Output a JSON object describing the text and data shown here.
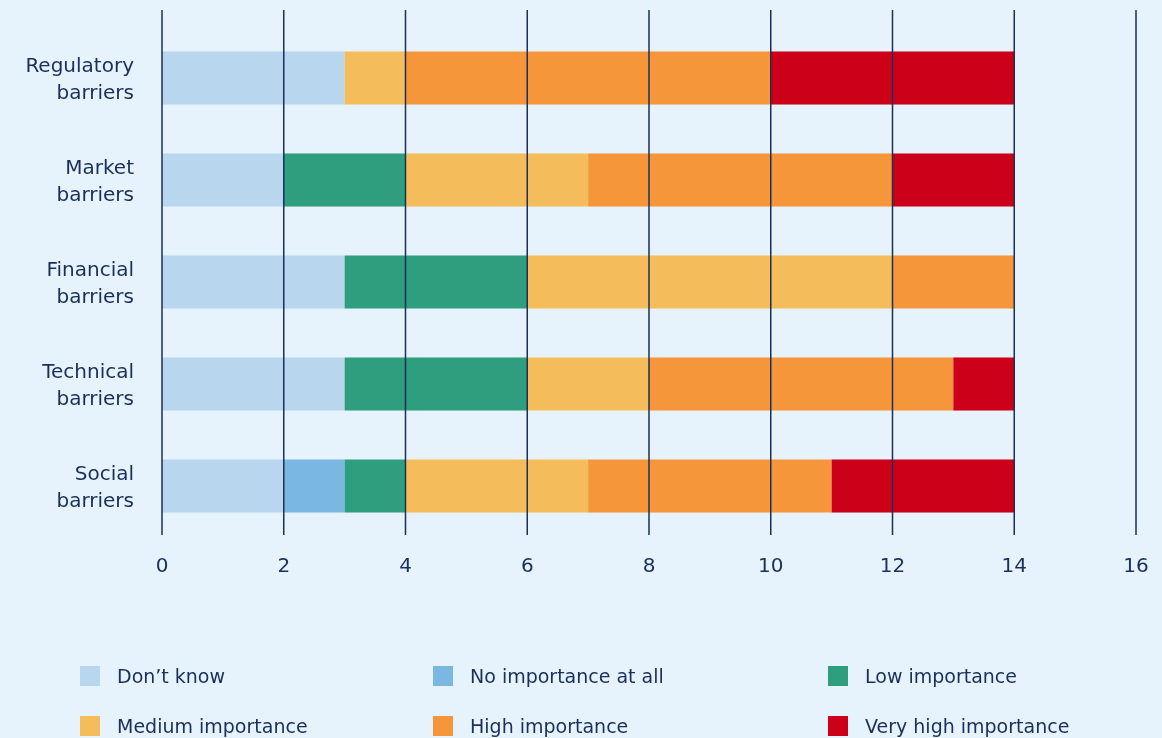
{
  "chart_data": {
    "type": "bar",
    "orientation": "horizontal",
    "stacked": true,
    "categories": [
      "Regulatory barriers",
      "Market barriers",
      "Financial barriers",
      "Technical barriers",
      "Social barriers"
    ],
    "series": [
      {
        "name": "Don’t know",
        "color": "#b8d6ee",
        "values": [
          3,
          2,
          3,
          3,
          2
        ]
      },
      {
        "name": "No importance at all",
        "color": "#7ab8e2",
        "values": [
          0,
          0,
          0,
          0,
          1
        ]
      },
      {
        "name": "Low importance",
        "color": "#2e9e7e",
        "values": [
          0,
          2,
          3,
          3,
          1
        ]
      },
      {
        "name": "Medium importance",
        "color": "#f4bc5a",
        "values": [
          1,
          3,
          6,
          2,
          3
        ]
      },
      {
        "name": "High importance",
        "color": "#f5963a",
        "values": [
          6,
          5,
          2,
          5,
          4
        ]
      },
      {
        "name": "Very high importance",
        "color": "#cc0019",
        "values": [
          4,
          2,
          0,
          1,
          3
        ]
      }
    ],
    "xlim": [
      0,
      16
    ],
    "xticks": [
      0,
      2,
      4,
      6,
      8,
      10,
      12,
      14,
      16
    ],
    "grid": "x",
    "legend": "bottom"
  }
}
